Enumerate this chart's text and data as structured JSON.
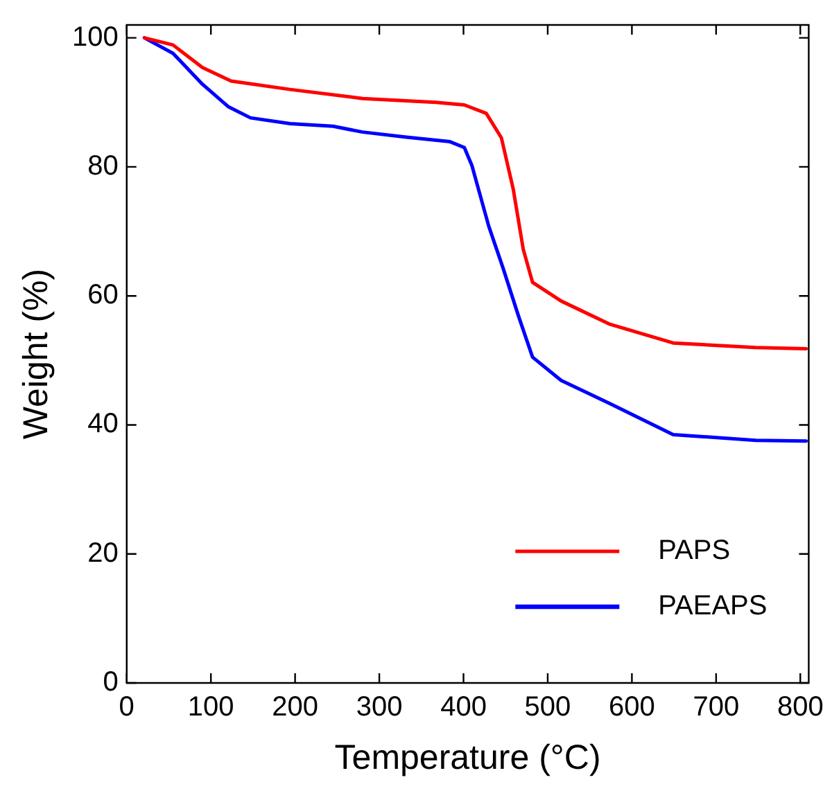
{
  "chart_data": {
    "type": "line",
    "xlabel": "Temperature (°C)",
    "ylabel": "Weight (%)",
    "xlim": [
      0,
      810
    ],
    "xticks": [
      0,
      100,
      200,
      300,
      400,
      500,
      600,
      700,
      800
    ],
    "ylim": [
      0,
      102
    ],
    "yticks": [
      0,
      20,
      40,
      60,
      80,
      100
    ],
    "grid": false,
    "legend": "bottom right",
    "marker": "none",
    "line_style": "solid",
    "series": [
      {
        "name": "PAPS",
        "color": "#ff0000",
        "x": [
          21,
          55,
          90,
          124,
          194,
          280,
          367,
          401,
          427,
          445,
          459,
          471,
          482,
          516,
          574,
          649,
          747,
          807
        ],
        "values": [
          100,
          98.9,
          95.4,
          93.3,
          92,
          90.6,
          90,
          89.6,
          88.3,
          84.5,
          76.6,
          67.2,
          62.1,
          59.2,
          55.6,
          52.7,
          52.0,
          51.8
        ]
      },
      {
        "name": "PAEAPS",
        "color": "#0000ff",
        "x": [
          21,
          55,
          90,
          121,
          147,
          194,
          245,
          280,
          332,
          384,
          401,
          410,
          430,
          447,
          465,
          482,
          516,
          574,
          649,
          747,
          807
        ],
        "values": [
          100,
          97.6,
          92.8,
          89.3,
          87.6,
          86.7,
          86.3,
          85.4,
          84.6,
          83.9,
          83.0,
          80.2,
          70.8,
          64.3,
          57.0,
          50.5,
          46.9,
          43.3,
          38.5,
          37.6,
          37.5
        ]
      }
    ]
  }
}
